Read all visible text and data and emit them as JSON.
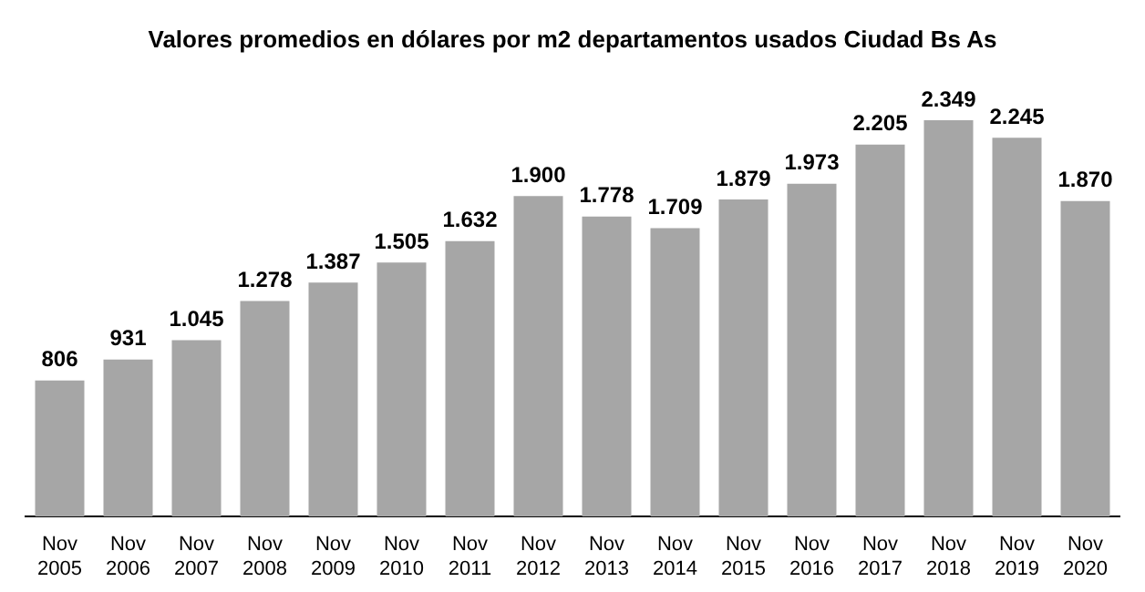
{
  "chart_data": {
    "type": "bar",
    "title": "Valores promedios en dólares por m2 departamentos usados Ciudad Bs As",
    "categories": [
      "Nov 2005",
      "Nov 2006",
      "Nov 2007",
      "Nov 2008",
      "Nov 2009",
      "Nov 2010",
      "Nov 2011",
      "Nov 2012",
      "Nov 2013",
      "Nov 2014",
      "Nov 2015",
      "Nov 2016",
      "Nov 2017",
      "Nov 2018",
      "Nov 2019",
      "Nov 2020"
    ],
    "values": [
      806,
      931,
      1045,
      1278,
      1387,
      1505,
      1632,
      1900,
      1778,
      1709,
      1879,
      1973,
      2205,
      2349,
      2245,
      1870
    ],
    "value_labels": [
      "806",
      "931",
      "1.045",
      "1.278",
      "1.387",
      "1.505",
      "1.632",
      "1.900",
      "1.778",
      "1.709",
      "1.879",
      "1.973",
      "2.205",
      "2.349",
      "2.245",
      "1.870"
    ],
    "color": "#a6a6a6",
    "grid": false,
    "legend": false
  }
}
